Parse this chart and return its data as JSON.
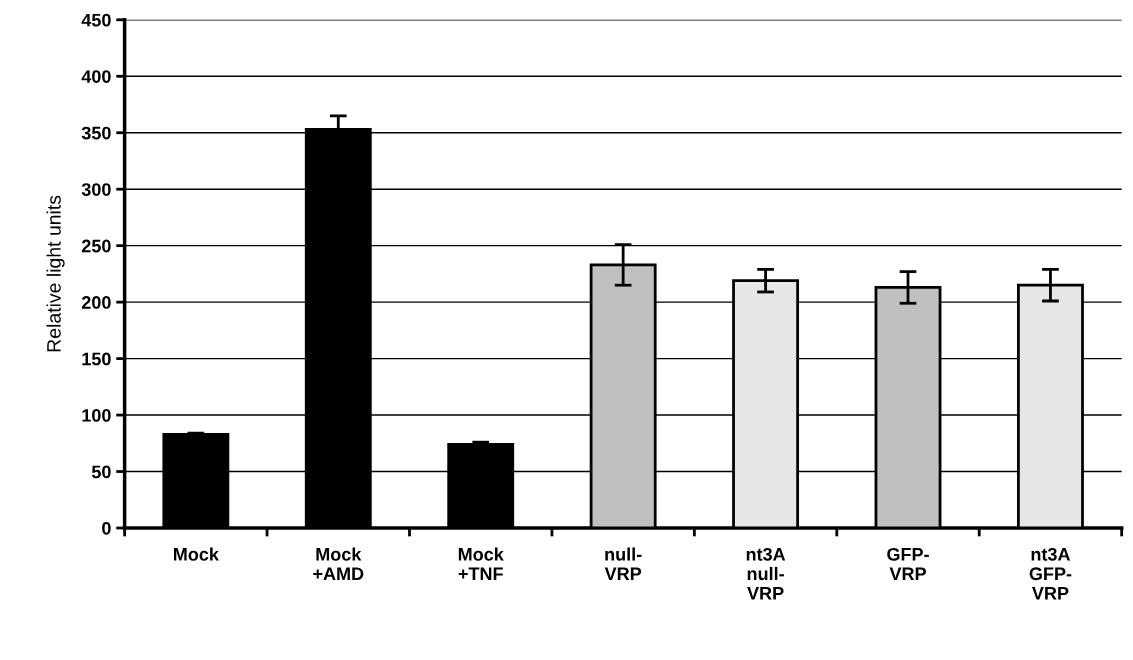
{
  "chart_data": {
    "type": "bar",
    "ylabel": "Relative light units",
    "categories": [
      "Mock",
      "Mock\n+AMD",
      "Mock\n+TNF",
      "null-\nVRP",
      "nt3A\nnull-\nVRP",
      "GFP-\nVRP",
      "nt3A\nGFP-\nVRP"
    ],
    "values": [
      83,
      353,
      74,
      233,
      219,
      213,
      215
    ],
    "errors": [
      1,
      12,
      2,
      18,
      10,
      14,
      14
    ],
    "colors": [
      "#000000",
      "#000000",
      "#000000",
      "#c0c0c0",
      "#e6e6e6",
      "#c0c0c0",
      "#e6e6e6"
    ],
    "ylim": [
      0,
      450
    ],
    "yticks": [
      0,
      50,
      100,
      150,
      200,
      250,
      300,
      350,
      400,
      450
    ],
    "grid": "y"
  }
}
